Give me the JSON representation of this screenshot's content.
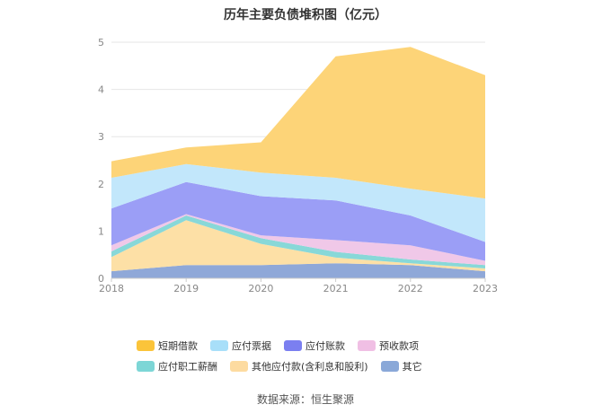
{
  "chart_data": {
    "type": "area",
    "stacked": true,
    "title": "历年主要负债堆积图（亿元）",
    "xlabel": "",
    "ylabel": "",
    "categories": [
      "2018",
      "2019",
      "2020",
      "2021",
      "2022",
      "2023"
    ],
    "ylim": [
      0,
      5
    ],
    "yticks": [
      0,
      1,
      2,
      3,
      4,
      5
    ],
    "grid": true,
    "legend_position": "bottom",
    "series": [
      {
        "name": "其它",
        "color": "#8fa8d8",
        "values": [
          0.15,
          0.28,
          0.28,
          0.32,
          0.28,
          0.15
        ]
      },
      {
        "name": "其他应付款(含利息和股利)",
        "color": "#fde0a6",
        "values": [
          0.3,
          0.95,
          0.45,
          0.12,
          0.04,
          0.06
        ]
      },
      {
        "name": "应付职工薪酬",
        "color": "#88d8d8",
        "values": [
          0.12,
          0.1,
          0.12,
          0.12,
          0.08,
          0.07
        ]
      },
      {
        "name": "预收款项",
        "color": "#f0c8e8",
        "values": [
          0.13,
          0.03,
          0.06,
          0.25,
          0.3,
          0.09
        ]
      },
      {
        "name": "应付账款",
        "color": "#9b9ef6",
        "values": [
          0.78,
          0.68,
          0.83,
          0.84,
          0.63,
          0.4
        ]
      },
      {
        "name": "应付票据",
        "color": "#c2e7fb",
        "values": [
          0.65,
          0.38,
          0.5,
          0.48,
          0.57,
          0.92
        ]
      },
      {
        "name": "短期借款",
        "color": "#fdd478",
        "values": [
          0.35,
          0.35,
          0.64,
          2.57,
          3.0,
          2.61
        ]
      }
    ],
    "legend_order": [
      "短期借款",
      "应付票据",
      "应付账款",
      "预收款项",
      "应付职工薪酬",
      "其他应付款(含利息和股利)",
      "其它"
    ],
    "legend_colors": {
      "短期借款": "#fbc43a",
      "应付票据": "#a8dff9",
      "应付账款": "#7b7ff0",
      "预收款项": "#f0bfe4",
      "应付职工薪酬": "#7dd6d6",
      "其他应付款(含利息和股利)": "#fddba0",
      "其它": "#8aa8d8"
    }
  },
  "source_note": "数据来源：恒生聚源"
}
